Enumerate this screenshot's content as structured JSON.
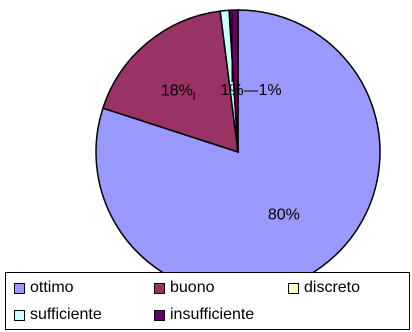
{
  "chart_data": {
    "type": "pie",
    "title": "",
    "slices": [
      {
        "name": "ottimo",
        "value": 80,
        "label": "80%",
        "color": "#9999ff"
      },
      {
        "name": "buono",
        "value": 18,
        "label": "18%",
        "color": "#993366"
      },
      {
        "name": "discreto",
        "value": 0,
        "label": "",
        "color": "#ffffcc"
      },
      {
        "name": "sufficiente",
        "value": 1,
        "label": "1%",
        "color": "#ccffff"
      },
      {
        "name": "insufficiente",
        "value": 1,
        "label": "1%",
        "color": "#660066"
      }
    ],
    "legend_position": "bottom",
    "legend": [
      "ottimo",
      "buono",
      "discreto",
      "sufficiente",
      "insufficiente"
    ]
  }
}
